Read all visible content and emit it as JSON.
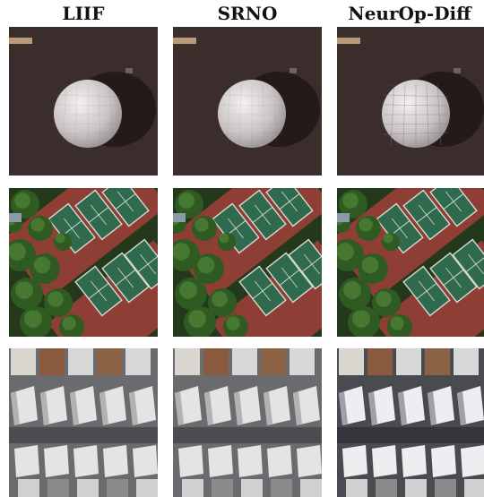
{
  "columns": [
    {
      "label": "LIIF"
    },
    {
      "label": "SRNO"
    },
    {
      "label": "NeurOp-Diff"
    }
  ],
  "rows": [
    {
      "scene": "dome"
    },
    {
      "scene": "tennis-courts"
    },
    {
      "scene": "houses"
    }
  ]
}
